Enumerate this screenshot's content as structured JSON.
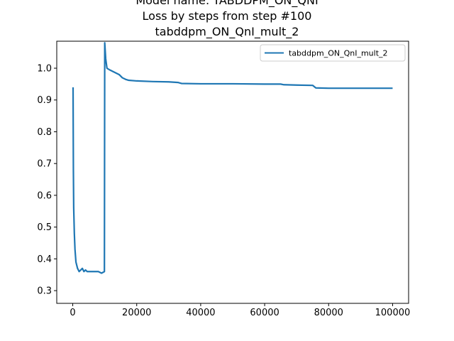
{
  "chart_data": {
    "type": "line",
    "title_lines": [
      "Model name: TABDDPM_ON_QNI",
      "Loss by steps from step #100",
      "tabddpm_ON_QnI_mult_2"
    ],
    "xlabel": "",
    "ylabel": "",
    "xlim": [
      -5000,
      105000
    ],
    "ylim": [
      0.26,
      1.085
    ],
    "xticks": [
      0,
      20000,
      40000,
      60000,
      80000,
      100000
    ],
    "xtick_labels": [
      "0",
      "20000",
      "40000",
      "60000",
      "80000",
      "100000"
    ],
    "yticks": [
      0.3,
      0.4,
      0.5,
      0.6,
      0.7,
      0.8,
      0.9,
      1.0
    ],
    "ytick_labels": [
      "0.3",
      "0.4",
      "0.5",
      "0.6",
      "0.7",
      "0.8",
      "0.9",
      "1.0"
    ],
    "grid": false,
    "legend_position": "top-right",
    "series": [
      {
        "name": "tabddpm_ON_QnI_mult_2",
        "color": "#1f77b4",
        "points": [
          [
            100,
            0.94
          ],
          [
            200,
            0.68
          ],
          [
            300,
            0.56
          ],
          [
            500,
            0.48
          ],
          [
            700,
            0.43
          ],
          [
            1000,
            0.39
          ],
          [
            1500,
            0.37
          ],
          [
            2000,
            0.36
          ],
          [
            2500,
            0.365
          ],
          [
            3000,
            0.37
          ],
          [
            3500,
            0.36
          ],
          [
            4000,
            0.365
          ],
          [
            4500,
            0.36
          ],
          [
            5000,
            0.36
          ],
          [
            6000,
            0.36
          ],
          [
            7000,
            0.36
          ],
          [
            8000,
            0.36
          ],
          [
            9000,
            0.355
          ],
          [
            9900,
            0.36
          ],
          [
            10000,
            1.08
          ],
          [
            10300,
            1.03
          ],
          [
            10700,
            1.0
          ],
          [
            11500,
            0.995
          ],
          [
            12500,
            0.99
          ],
          [
            13500,
            0.985
          ],
          [
            14500,
            0.98
          ],
          [
            15500,
            0.97
          ],
          [
            16500,
            0.965
          ],
          [
            17500,
            0.962
          ],
          [
            20000,
            0.96
          ],
          [
            25000,
            0.958
          ],
          [
            30000,
            0.957
          ],
          [
            33000,
            0.955
          ],
          [
            34000,
            0.952
          ],
          [
            40000,
            0.951
          ],
          [
            50000,
            0.951
          ],
          [
            60000,
            0.95
          ],
          [
            65000,
            0.95
          ],
          [
            66000,
            0.948
          ],
          [
            70000,
            0.947
          ],
          [
            75000,
            0.946
          ],
          [
            76000,
            0.938
          ],
          [
            80000,
            0.937
          ],
          [
            85000,
            0.937
          ],
          [
            90000,
            0.937
          ],
          [
            95000,
            0.937
          ],
          [
            100000,
            0.937
          ]
        ]
      }
    ]
  }
}
